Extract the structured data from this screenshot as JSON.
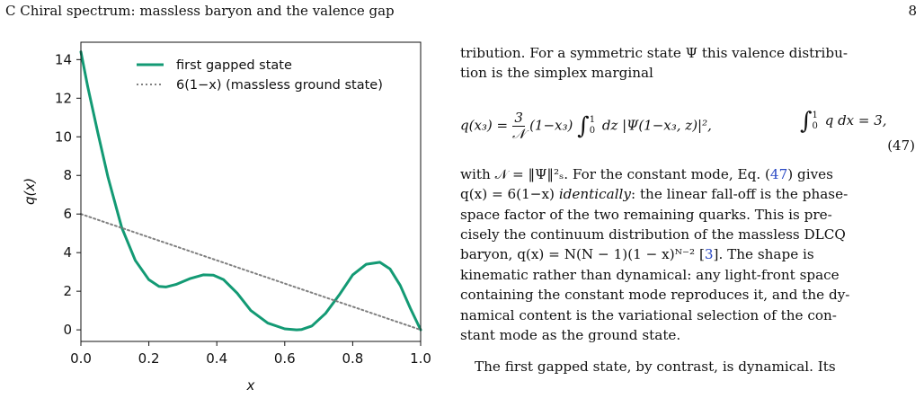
{
  "header": {
    "section": "C   Chiral spectrum: massless baryon and the valence gap",
    "page_number": "8"
  },
  "chart_data": {
    "type": "line",
    "xlabel": "x",
    "ylabel": "q(x)",
    "xlim": [
      0.0,
      1.0
    ],
    "ylim": [
      -0.6,
      14.9
    ],
    "xticks": [
      "0.0",
      "0.2",
      "0.4",
      "0.6",
      "0.8",
      "1.0"
    ],
    "yticks": [
      "0",
      "2",
      "4",
      "6",
      "8",
      "10",
      "12",
      "14"
    ],
    "legend_placement": "top-right",
    "grid": false,
    "colors": {
      "first": "#139a74",
      "ground": "#808080"
    },
    "series": [
      {
        "name": "first gapped state",
        "style": "solid",
        "x": [
          0.0,
          0.02,
          0.05,
          0.08,
          0.12,
          0.16,
          0.2,
          0.23,
          0.25,
          0.28,
          0.32,
          0.36,
          0.39,
          0.42,
          0.46,
          0.5,
          0.55,
          0.6,
          0.635,
          0.65,
          0.68,
          0.72,
          0.76,
          0.8,
          0.84,
          0.88,
          0.91,
          0.94,
          0.97,
          1.0
        ],
        "y": [
          14.4,
          12.6,
          10.2,
          7.9,
          5.3,
          3.6,
          2.6,
          2.25,
          2.22,
          2.35,
          2.65,
          2.85,
          2.83,
          2.6,
          1.9,
          1.0,
          0.35,
          0.05,
          0.0,
          0.02,
          0.2,
          0.85,
          1.8,
          2.85,
          3.4,
          3.5,
          3.15,
          2.3,
          1.1,
          0.0
        ]
      },
      {
        "name": "6(1−x) (massless ground state)",
        "style": "dotted",
        "x": [
          0.0,
          1.0
        ],
        "y": [
          6.0,
          0.0
        ]
      }
    ]
  },
  "text": {
    "p1a": "tribution. For a symmetric state Ψ this valence distribu-",
    "p1b": "tion is the simplex marginal",
    "eq_lhs": "q(x₃) =",
    "eq_num": "3",
    "eq_den": "𝒩",
    "eq_mid": "(1−x₃)",
    "int_top": "1",
    "int_bot": "0",
    "eq_body": "dz |Ψ(1−x₃, z)|²,",
    "eq_side": "q dx = 3,",
    "eq_number": "(47)",
    "p2_l1_a": "with 𝒩 = ‖Ψ‖²ₛ. For the constant mode, Eq. (",
    "p2_l1_ref": "47",
    "p2_l1_b": ") gives",
    "p2_l2_a": "q(x) = 6(1−x)",
    "p2_l2_it": "identically",
    "p2_l2_b": ": the linear fall-off is the phase-",
    "p2_l3": "space factor of the two remaining quarks. This is pre-",
    "p2_l4": "cisely the continuum distribution of the massless DLCQ",
    "p2_l5_a": "baryon, q(x) = N(N − 1)(1 − x)ᴺ⁻² [",
    "p2_l5_ref": "3",
    "p2_l5_b": "]. The shape is",
    "p2_l6": "kinematic rather than dynamical: any light-front space",
    "p2_l7": "containing the constant mode reproduces it, and the dy-",
    "p2_l8": "namical content is the variational selection of the con-",
    "p2_l9": "stant mode as the ground state.",
    "p3_l1": "The first gapped state, by contrast, is dynamical. Its"
  }
}
